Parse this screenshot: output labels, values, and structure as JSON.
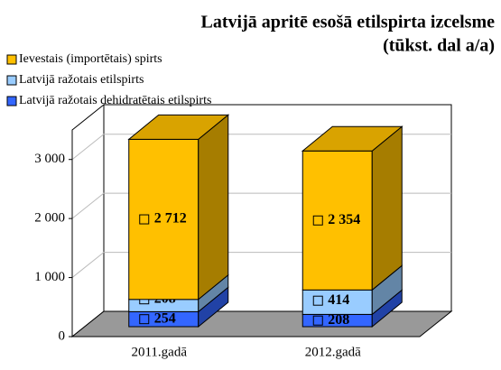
{
  "chart_data": {
    "type": "bar3d_stacked",
    "title": "Latvijā apritē esošā etilspirta izcelsme",
    "subtitle": "(tūkst. dal a/a)",
    "categories": [
      "2011.gadā",
      "2012.gadā"
    ],
    "series": [
      {
        "name": "Latvijā ražotais dehidratētais etilspirts",
        "color": "#3366ff",
        "values": [
          254,
          208
        ],
        "value_labels": [
          "254",
          "208"
        ]
      },
      {
        "name": "Latvijā ražotais etilspirts",
        "color": "#99ccff",
        "values": [
          208,
          414
        ],
        "value_labels": [
          "208",
          "414"
        ]
      },
      {
        "name": "Ievestais (importētais) spirts",
        "color": "#ffc000",
        "values": [
          2712,
          2354
        ],
        "value_labels": [
          "2 712",
          "2 354"
        ]
      }
    ],
    "legend_order": [
      2,
      1,
      0
    ],
    "ylim": [
      0,
      3500
    ],
    "yticks": [
      0,
      {
        "value": 1000,
        "label": "1 000"
      },
      {
        "value": 2000,
        "label": "2 000"
      },
      {
        "value": 3000,
        "label": "3 000"
      }
    ],
    "grid": true
  }
}
